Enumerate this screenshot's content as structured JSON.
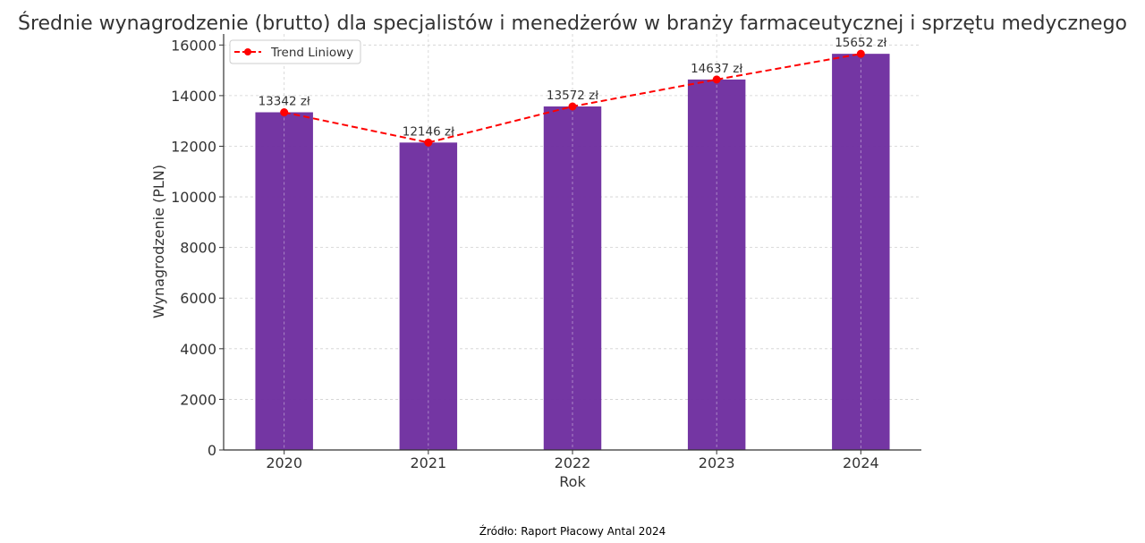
{
  "chart_data": {
    "type": "bar",
    "title": "Średnie wynagrodzenie (brutto) dla specjalistów i menedżerów w branży farmaceutycznej i sprzętu medycznego",
    "xlabel": "Rok",
    "ylabel": "Wynagrodzenie (PLN)",
    "categories": [
      "2020",
      "2021",
      "2022",
      "2023",
      "2024"
    ],
    "values": [
      13342,
      12146,
      13572,
      14637,
      15652
    ],
    "data_labels": [
      "13342 zł",
      "12146 zł",
      "13572 zł",
      "14637 zł",
      "15652 zł"
    ],
    "bar_color": "#7030a0",
    "ylim": [
      0,
      16435
    ],
    "yticks": [
      0,
      2000,
      4000,
      6000,
      8000,
      10000,
      12000,
      14000,
      16000
    ],
    "grid": true,
    "overlay_series": {
      "name": "Trend Liniowy",
      "type": "line",
      "style": "dashed-with-markers",
      "color": "#ff0000",
      "values": [
        13342,
        12146,
        13572,
        14637,
        15652
      ]
    },
    "legend": {
      "position": "top-left",
      "entries": [
        "Trend Liniowy"
      ]
    },
    "source_note": "Źródło: Raport Płacowy Antal 2024"
  }
}
